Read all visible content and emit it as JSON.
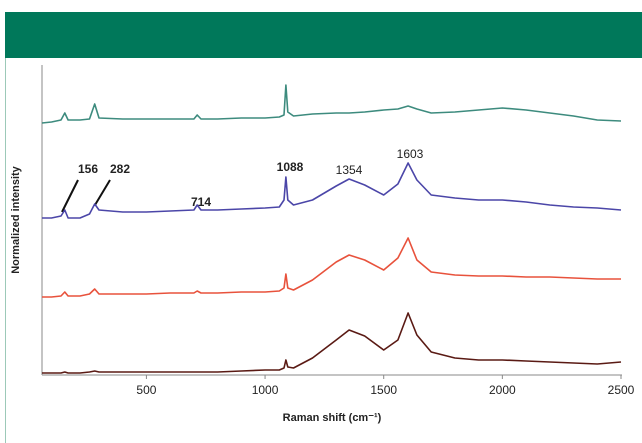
{
  "chart_data": {
    "type": "line",
    "x_label": "Raman shift (cm⁻¹)",
    "y_label": "Normalized intensity",
    "x": [
      60,
      100,
      140,
      156,
      170,
      220,
      260,
      282,
      300,
      400,
      500,
      600,
      700,
      714,
      730,
      800,
      900,
      1000,
      1060,
      1080,
      1088,
      1096,
      1120,
      1200,
      1300,
      1354,
      1420,
      1500,
      1560,
      1603,
      1640,
      1700,
      1800,
      1900,
      2000,
      2100,
      2200,
      2300,
      2400,
      2500
    ],
    "series": [
      {
        "color": "#3d8b7e",
        "values": [
          252,
          253,
          255,
          262,
          255,
          255,
          256,
          271,
          257,
          256,
          256,
          256,
          256,
          260,
          256,
          256,
          257,
          257,
          258,
          260,
          290,
          263,
          259,
          261,
          262,
          262,
          263,
          265,
          266,
          269,
          266,
          262,
          263,
          265,
          267,
          265,
          262,
          259,
          255,
          254
        ]
      },
      {
        "color": "#4b46a8",
        "values": [
          157,
          157,
          159,
          165,
          157,
          157,
          161,
          171,
          165,
          163,
          163,
          164,
          165,
          170,
          165,
          165,
          166,
          167,
          168,
          175,
          198,
          175,
          170,
          175,
          189,
          196,
          190,
          180,
          191,
          212,
          195,
          180,
          177,
          175,
          175,
          173,
          170,
          168,
          167,
          165
        ]
      },
      {
        "color": "#e8523c",
        "values": [
          78,
          78,
          79,
          83,
          79,
          79,
          81,
          86,
          81,
          81,
          81,
          82,
          82,
          84,
          82,
          82,
          83,
          83,
          84,
          87,
          101,
          87,
          85,
          95,
          113,
          120,
          115,
          105,
          117,
          137,
          115,
          103,
          100,
          99,
          99,
          98,
          98,
          97,
          96,
          96
        ]
      },
      {
        "color": "#5a1a14",
        "values": [
          2,
          2,
          2,
          3,
          2,
          2,
          3,
          4,
          3,
          3,
          3,
          3,
          3,
          3,
          3,
          3,
          4,
          5,
          5,
          7,
          15,
          8,
          7,
          17,
          35,
          45,
          39,
          25,
          35,
          62,
          40,
          23,
          17,
          15,
          15,
          14,
          13,
          12,
          11,
          13
        ]
      }
    ],
    "annotations": [
      "156",
      "282",
      "714",
      "1088",
      "1354",
      "1603"
    ],
    "xlim": [
      60,
      2500
    ],
    "xticks": [
      500,
      1000,
      1500,
      2000,
      2500
    ],
    "ylim": [
      0,
      310
    ]
  }
}
